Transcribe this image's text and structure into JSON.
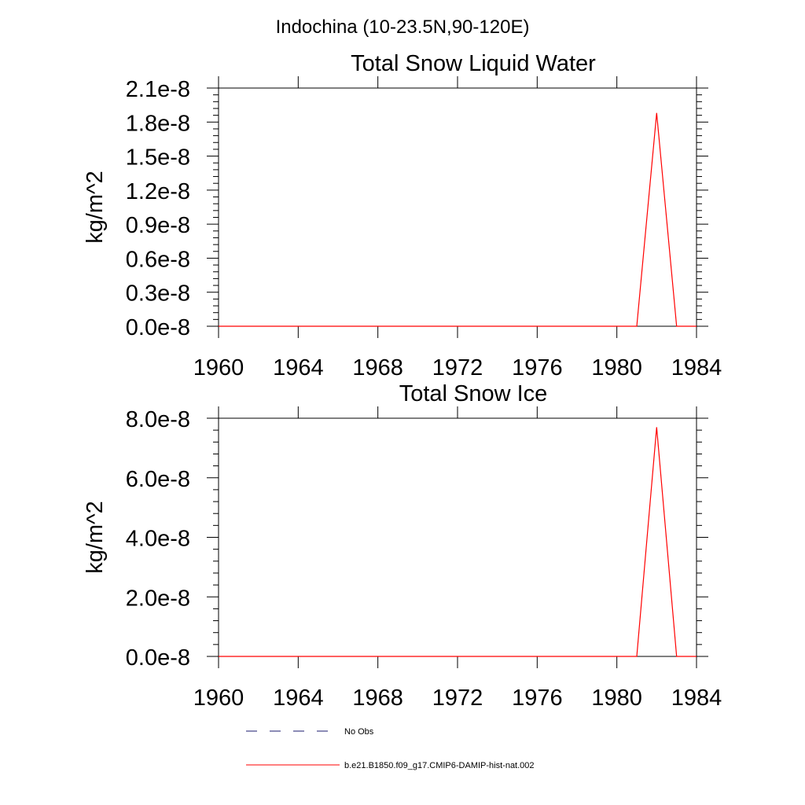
{
  "figure": {
    "suptitle": "Indochina (10-23.5N,90-120E)"
  },
  "colors": {
    "model_line": "#ff0000",
    "obs_line": "#1a1a6e",
    "axes": "#000000"
  },
  "chart_data": [
    {
      "type": "line",
      "title": "Total Snow Liquid Water",
      "xlabel": "",
      "ylabel": "kg/m^2",
      "xlim": [
        1960,
        1984
      ],
      "ylim": [
        0,
        2.1e-08
      ],
      "xticks": [
        1960,
        1964,
        1968,
        1972,
        1976,
        1980,
        1984
      ],
      "xtick_labels": [
        "1960",
        "1964",
        "1968",
        "1972",
        "1976",
        "1980",
        "1984"
      ],
      "yticks": [
        0,
        3e-09,
        6e-09,
        9e-09,
        1.2e-08,
        1.5e-08,
        1.8e-08,
        2.1e-08
      ],
      "ytick_labels": [
        "0.0e-8",
        "0.3e-8",
        "0.6e-8",
        "0.9e-8",
        "1.2e-8",
        "1.5e-8",
        "1.8e-8",
        "2.1e-8"
      ],
      "series": [
        {
          "name": "b.e21.B1850.f09_g17.CMIP6-DAMIP-hist-nat.002",
          "color": "#ff0000",
          "x": [
            1960,
            1961,
            1962,
            1963,
            1964,
            1965,
            1966,
            1967,
            1968,
            1969,
            1970,
            1971,
            1972,
            1973,
            1974,
            1975,
            1976,
            1977,
            1978,
            1979,
            1980,
            1981,
            1982,
            1983,
            1984
          ],
          "y": [
            0,
            0,
            0,
            0,
            0,
            0,
            0,
            0,
            0,
            0,
            0,
            0,
            0,
            0,
            0,
            0,
            0,
            0,
            0,
            0,
            0,
            0,
            1.88e-08,
            0,
            0
          ]
        }
      ]
    },
    {
      "type": "line",
      "title": "Total Snow Ice",
      "xlabel": "",
      "ylabel": "kg/m^2",
      "xlim": [
        1960,
        1984
      ],
      "ylim": [
        0,
        8e-08
      ],
      "xticks": [
        1960,
        1964,
        1968,
        1972,
        1976,
        1980,
        1984
      ],
      "xtick_labels": [
        "1960",
        "1964",
        "1968",
        "1972",
        "1976",
        "1980",
        "1984"
      ],
      "yticks": [
        0,
        2e-08,
        4e-08,
        6e-08,
        8e-08
      ],
      "ytick_labels": [
        "0.0e-8",
        "2.0e-8",
        "4.0e-8",
        "6.0e-8",
        "8.0e-8"
      ],
      "series": [
        {
          "name": "b.e21.B1850.f09_g17.CMIP6-DAMIP-hist-nat.002",
          "color": "#ff0000",
          "x": [
            1960,
            1961,
            1962,
            1963,
            1964,
            1965,
            1966,
            1967,
            1968,
            1969,
            1970,
            1971,
            1972,
            1973,
            1974,
            1975,
            1976,
            1977,
            1978,
            1979,
            1980,
            1981,
            1982,
            1983,
            1984
          ],
          "y": [
            0,
            0,
            0,
            0,
            0,
            0,
            0,
            0,
            0,
            0,
            0,
            0,
            0,
            0,
            0,
            0,
            0,
            0,
            0,
            0,
            0,
            0,
            7.7e-08,
            0,
            0
          ]
        }
      ]
    }
  ],
  "legend": {
    "entries": [
      {
        "label": "No Obs",
        "style": "dashed",
        "color": "#1a1a6e"
      },
      {
        "label": "b.e21.B1850.f09_g17.CMIP6-DAMIP-hist-nat.002",
        "style": "solid",
        "color": "#ff0000"
      }
    ]
  }
}
